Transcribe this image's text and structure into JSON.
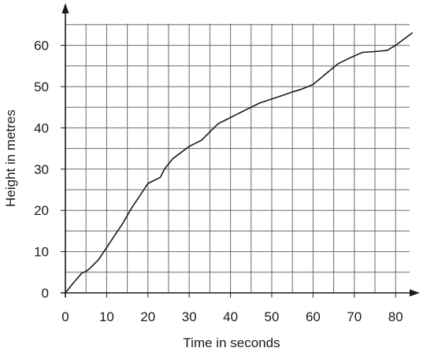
{
  "chart_data": {
    "type": "line",
    "title": "",
    "xlabel": "Time in seconds",
    "ylabel": "Height in metres",
    "xlim": [
      0,
      84
    ],
    "ylim": [
      0,
      68
    ],
    "x_ticks": [
      0,
      10,
      20,
      30,
      40,
      50,
      60,
      70,
      80
    ],
    "y_ticks": [
      0,
      10,
      20,
      30,
      40,
      50,
      60
    ],
    "x_minor_step": 5,
    "y_minor_step": 5,
    "grid": true,
    "line_color": "#1a1a1a",
    "grid_color": "#6a6a6a",
    "series": [
      {
        "x": [
          0,
          2,
          4,
          5,
          6,
          8,
          9,
          10,
          12,
          14,
          16,
          18,
          20,
          21,
          23,
          24,
          26,
          28,
          30,
          32,
          33,
          35,
          37,
          39,
          41,
          43,
          45,
          47,
          50,
          53,
          55,
          57,
          60,
          63,
          66,
          69,
          72,
          75,
          78,
          80,
          84
        ],
        "y": [
          0,
          2.5,
          4.8,
          5.2,
          6,
          8,
          9.5,
          11,
          14,
          17,
          20.5,
          23.5,
          26.5,
          27,
          28,
          30,
          32.5,
          34,
          35.5,
          36.5,
          37,
          39,
          41,
          42,
          43,
          44,
          45,
          46,
          47,
          48,
          48.7,
          49.3,
          50.5,
          53,
          55.5,
          57,
          58.3,
          58.5,
          58.8,
          60,
          63
        ]
      }
    ]
  }
}
